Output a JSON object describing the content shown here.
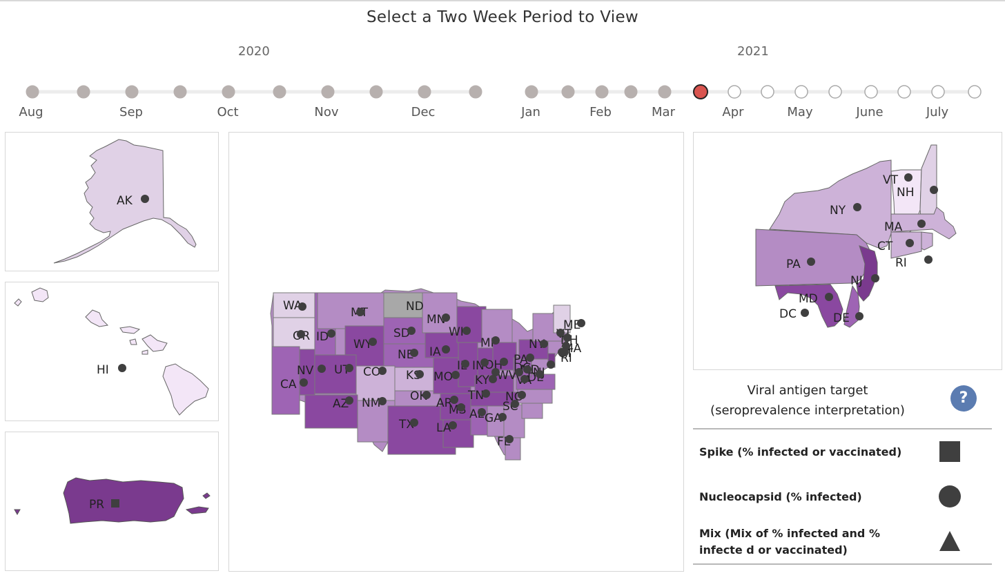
{
  "header": {
    "title": "Select a Two Week Period to View"
  },
  "timeline": {
    "years": [
      "2020",
      "2021"
    ],
    "months": [
      "Aug",
      "Sep",
      "Oct",
      "Nov",
      "Dec",
      "Jan",
      "Feb",
      "Mar",
      "Apr",
      "May",
      "June",
      "July"
    ],
    "selected_period": 15,
    "colors": {
      "past": "#b7b0ae",
      "selected": "#d9544f",
      "future": "#ffffff",
      "track": "#ececec"
    }
  },
  "maps": {
    "alaska": {
      "labels": [
        "AK"
      ],
      "markers": [
        "circle"
      ]
    },
    "hawaii": {
      "labels": [
        "HI"
      ],
      "markers": [
        "circle"
      ]
    },
    "puerto_rico": {
      "labels": [
        "PR"
      ],
      "markers": [
        "square"
      ]
    },
    "contiguous": {
      "labels": [
        "WA",
        "OR",
        "ID",
        "MT",
        "ND",
        "MN",
        "WI",
        "MI",
        "SD",
        "WY",
        "NE",
        "IA",
        "IL",
        "IN",
        "OH",
        "PA",
        "NY",
        "VT",
        "NH",
        "ME",
        "MA",
        "CT",
        "RI",
        "NJ",
        "DE",
        "MD",
        "DC",
        "WV",
        "VA",
        "NV",
        "UT",
        "CO",
        "KS",
        "MO",
        "KY",
        "CA",
        "AZ",
        "NM",
        "OK",
        "AR",
        "TN",
        "NC",
        "SC",
        "MS",
        "AL",
        "GA",
        "TX",
        "LA",
        "FL"
      ],
      "no_data": [
        "ND"
      ]
    },
    "northeast": {
      "labels": [
        "VT",
        "NH",
        "NY",
        "MA",
        "CT",
        "RI",
        "PA",
        "NJ",
        "MD",
        "DC",
        "DE"
      ]
    },
    "colors": {
      "scale": [
        "#f3e6f7",
        "#e0d1e6",
        "#cdb2d8",
        "#b48cc4",
        "#9e64b4",
        "#8a48a0",
        "#7a3a8e"
      ],
      "no_data": "#a8a8a8",
      "marker": "#3f3f3f"
    }
  },
  "legend": {
    "title_line1": "Viral antigen target",
    "title_line2": "(seroprevalence interpretation)",
    "help_label": "?",
    "help_icon": "question-icon",
    "items": [
      {
        "label": "Spike (% infected or vaccinated)",
        "symbol": "square"
      },
      {
        "label": "Nucleocapsid (% infected)",
        "symbol": "circle"
      },
      {
        "label": "Mix (Mix of % infected and % infecte d or vaccinated)",
        "symbol": "triangle"
      }
    ]
  }
}
